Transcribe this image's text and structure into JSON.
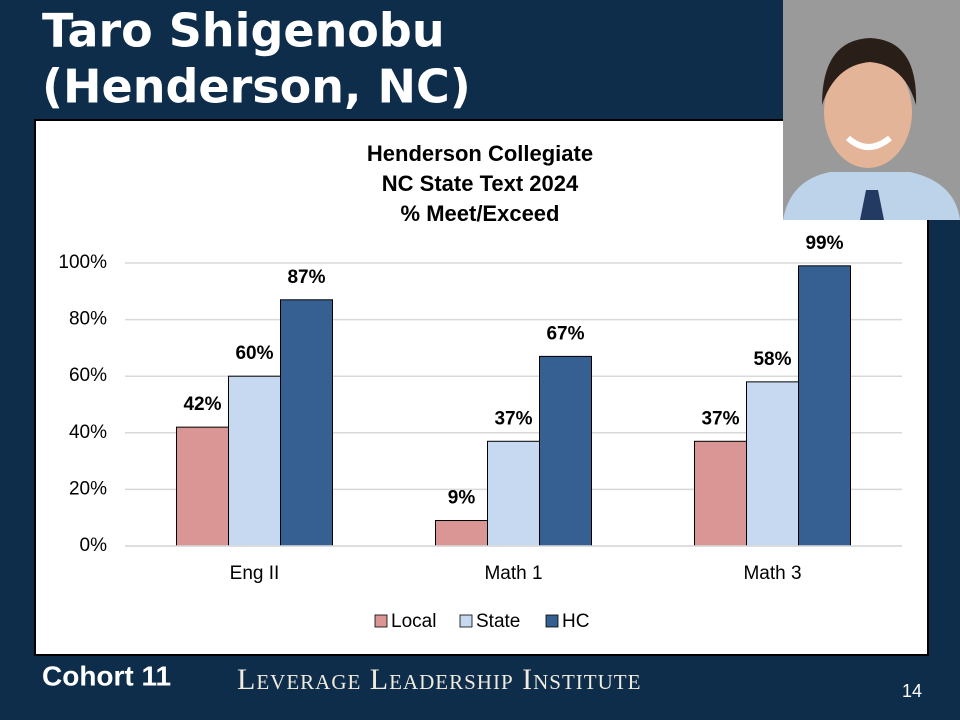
{
  "slide": {
    "title_lines": [
      "Taro Shigenobu",
      "(Henderson, NC)"
    ],
    "cohort": "Cohort 11",
    "institute": "Leverage Leadership Institute",
    "page_number": "14"
  },
  "chart_data": {
    "type": "bar",
    "title": [
      "Henderson Collegiate",
      "NC State Text 2024",
      "% Meet/Exceed"
    ],
    "categories": [
      "Eng II",
      "Math 1",
      "Math 3"
    ],
    "series": [
      {
        "name": "Local",
        "color": "#d99694",
        "values": [
          42,
          9,
          37
        ],
        "value_labels": [
          "42%",
          "9%",
          "37%"
        ]
      },
      {
        "name": "State",
        "color": "#c6d9f1",
        "values": [
          60,
          37,
          58
        ],
        "value_labels": [
          "60%",
          "37%",
          "58%"
        ]
      },
      {
        "name": "HC",
        "color": "#376092",
        "values": [
          87,
          67,
          99
        ],
        "value_labels": [
          "87%",
          "67%",
          "99%"
        ]
      }
    ],
    "ylim": [
      0,
      100
    ],
    "yticks": [
      {
        "value": 0,
        "label": "0%"
      },
      {
        "value": 20,
        "label": "20%"
      },
      {
        "value": 40,
        "label": "40%"
      },
      {
        "value": 60,
        "label": "60%"
      },
      {
        "value": 80,
        "label": "80%"
      },
      {
        "value": 100,
        "label": "100%"
      }
    ],
    "grid": true,
    "legend": "bottom"
  }
}
